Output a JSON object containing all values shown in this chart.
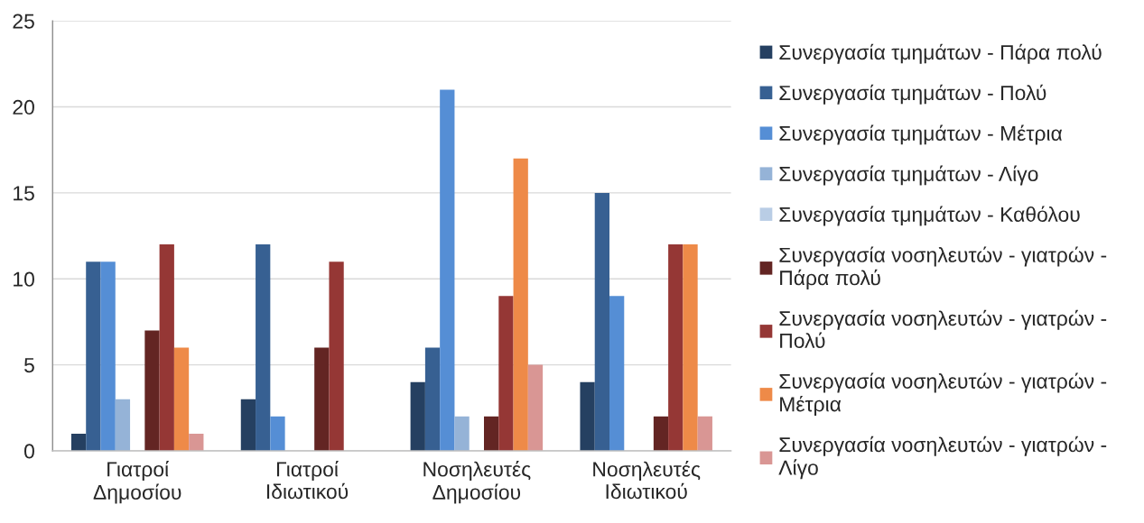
{
  "chart_data": {
    "type": "bar",
    "categories": [
      "Γιατροί Δημοσίου",
      "Γιατροί Ιδιωτικού",
      "Νοσηλευτές Δημοσίου",
      "Νοσηλευτές Ιδιωτικού"
    ],
    "series": [
      {
        "name": "Συνεργασία τμημάτων - Πάρα πολύ",
        "color": "#254061",
        "values": [
          1,
          3,
          4,
          4
        ]
      },
      {
        "name": "Συνεργασία τμημάτων - Πολύ",
        "color": "#376092",
        "values": [
          11,
          12,
          6,
          15
        ]
      },
      {
        "name": "Συνεργασία τμημάτων - Μέτρια",
        "color": "#558ed5",
        "values": [
          11,
          2,
          21,
          9
        ]
      },
      {
        "name": "Συνεργασία τμημάτων - Λίγο",
        "color": "#95b3d7",
        "values": [
          3,
          null,
          2,
          null
        ]
      },
      {
        "name": "Συνεργασία τμημάτων - Καθόλου",
        "color": "#b9cde5",
        "values": [
          null,
          null,
          null,
          null
        ]
      },
      {
        "name": "Συνεργασία νοσηλευτών - γιατρών - Πάρα πολύ",
        "color": "#632523",
        "values": [
          7,
          6,
          2,
          2
        ]
      },
      {
        "name": "Συνεργασία νοσηλευτών - γιατρών - Πολύ",
        "color": "#953735",
        "values": [
          12,
          11,
          9,
          12
        ]
      },
      {
        "name": "Συνεργασία νοσηλευτών - γιατρών - Μέτρια",
        "color": "#ee8a48",
        "values": [
          6,
          null,
          17,
          12
        ]
      },
      {
        "name": "Συνεργασία νοσηλευτών - γιατρών - Λίγο",
        "color": "#d99694",
        "values": [
          1,
          null,
          5,
          2
        ]
      }
    ],
    "ylim": [
      0,
      25
    ],
    "yticks": [
      0,
      5,
      10,
      15,
      20,
      25
    ],
    "grid": "y",
    "legend": "right"
  }
}
